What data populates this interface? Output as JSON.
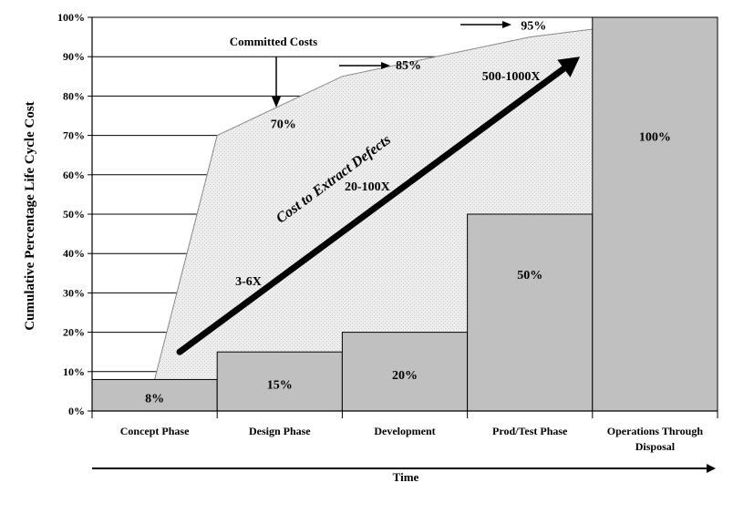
{
  "chart_data": {
    "type": "bar",
    "ylabel": "Cumulative Percentage Life Cycle Cost",
    "xlabel": "Time",
    "ylim": [
      0,
      100
    ],
    "yticks": [
      "0%",
      "10%",
      "20%",
      "30%",
      "40%",
      "50%",
      "60%",
      "70%",
      "80%",
      "90%",
      "100%"
    ],
    "grid": true,
    "categories": [
      "Concept Phase",
      "Design Phase",
      "Development",
      "Prod/Test Phase",
      "Operations Through Disposal"
    ],
    "values": [
      8,
      15,
      20,
      50,
      100
    ],
    "value_labels": [
      "8%",
      "15%",
      "20%",
      "50%",
      "100%"
    ],
    "bar_color": "#c0c0c0",
    "committed_costs": {
      "label": "Committed Costs",
      "type": "area",
      "color": "#e8e8e8",
      "points": [
        {
          "x": 0.5,
          "y": 8
        },
        {
          "x": 1.0,
          "y": 70
        },
        {
          "x": 2.0,
          "y": 85
        },
        {
          "x": 3.5,
          "y": 95
        },
        {
          "x": 4.0,
          "y": 97
        }
      ],
      "point_labels": [
        {
          "text": "70%",
          "x": 1.5,
          "y": 73
        },
        {
          "text": "85%",
          "x": 2.5,
          "y": 88
        },
        {
          "text": "95%",
          "x": 3.5,
          "y": 98
        }
      ]
    },
    "defect_cost_arrow": {
      "label": "Cost to Extract Defects",
      "from": {
        "x": 0.7,
        "y": 15
      },
      "to": {
        "x": 3.9,
        "y": 90
      },
      "multipliers": [
        {
          "text": "3-6X",
          "x": 1.25,
          "y": 32
        },
        {
          "text": "20-100X",
          "x": 2.2,
          "y": 56
        },
        {
          "text": "500-1000X",
          "x": 3.35,
          "y": 84
        }
      ]
    }
  }
}
